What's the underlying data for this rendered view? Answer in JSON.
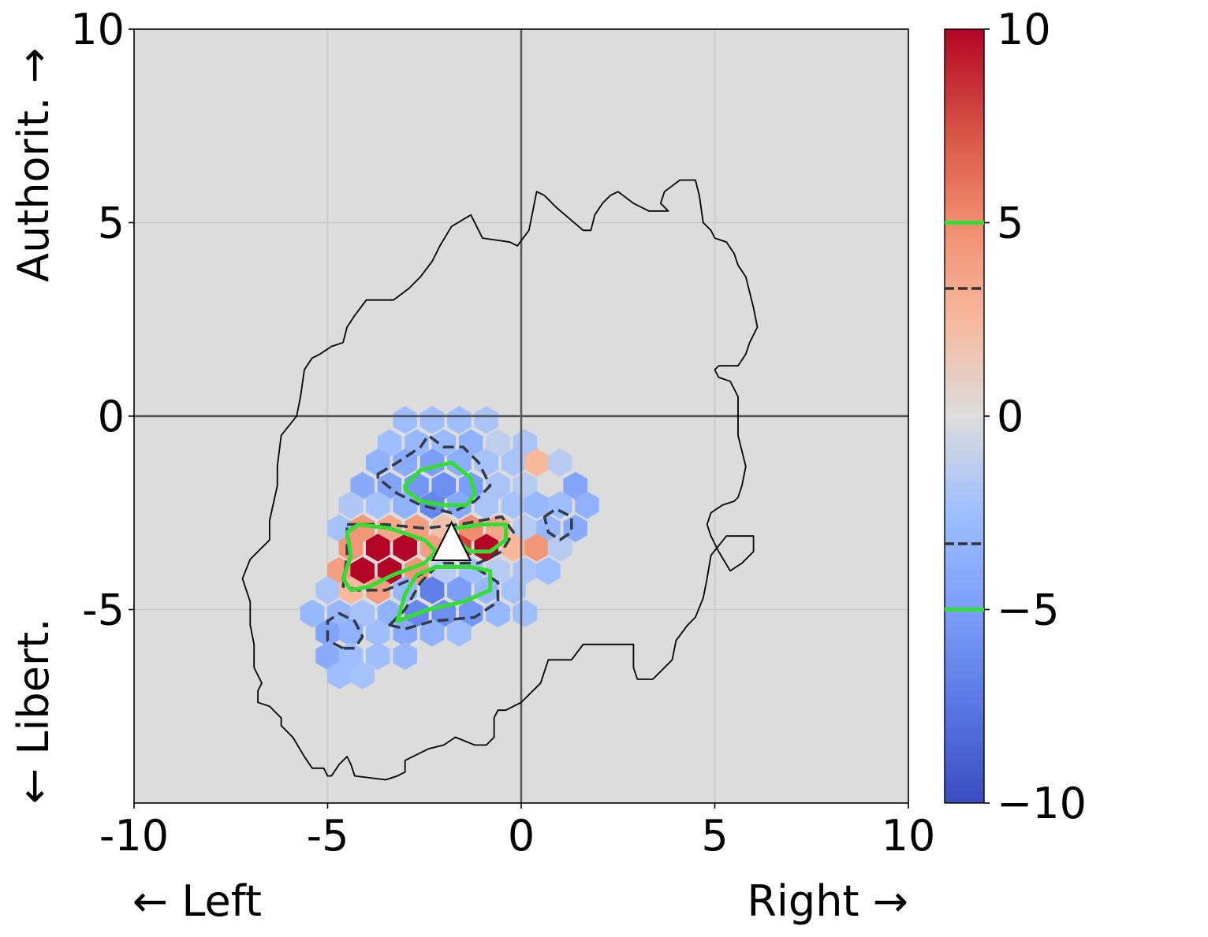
{
  "chart_data": {
    "type": "heatmap",
    "subtype": "hexbin",
    "xlim": [
      -10,
      10
    ],
    "ylim": [
      -10,
      10
    ],
    "x_ticks": [
      "-10",
      "-5",
      "0",
      "5",
      "10"
    ],
    "y_ticks": [
      "-5",
      "0",
      "5",
      "10"
    ],
    "y_axis_label_top": "Authorit. →",
    "y_axis_label_bottom": "← Libert.",
    "x_axis_label_left": "← Left",
    "x_axis_label_right": "Right →",
    "grid": true,
    "background_color": "#dcdcdc",
    "colormap": "coolwarm",
    "colorbar": {
      "range": [
        -10,
        10
      ],
      "ticks": [
        "10",
        "5",
        "0",
        "−5",
        "−10"
      ],
      "ticks_values": [
        10,
        5,
        0,
        -5,
        -10
      ],
      "contour_markers": [
        {
          "value": 5,
          "style": "solid",
          "color": "#33dd33"
        },
        {
          "value": 3.3,
          "style": "dashed",
          "color": "#333333"
        },
        {
          "value": -3.3,
          "style": "dashed",
          "color": "#333333"
        },
        {
          "value": -5,
          "style": "solid",
          "color": "#33dd33"
        }
      ]
    },
    "cells": [
      {
        "x": -3.0,
        "y": -0.1,
        "v": -2.5
      },
      {
        "x": -2.3,
        "y": -0.1,
        "v": -2.5
      },
      {
        "x": -1.6,
        "y": -0.1,
        "v": -2.5
      },
      {
        "x": -0.9,
        "y": -0.1,
        "v": -2.0
      },
      {
        "x": -3.4,
        "y": -0.7,
        "v": -2.5
      },
      {
        "x": -2.7,
        "y": -0.7,
        "v": -3.0
      },
      {
        "x": -2.0,
        "y": -0.7,
        "v": -2.8
      },
      {
        "x": -1.3,
        "y": -0.7,
        "v": -3.5
      },
      {
        "x": -0.6,
        "y": -0.7,
        "v": -1.2
      },
      {
        "x": 0.1,
        "y": -0.7,
        "v": -2.0
      },
      {
        "x": -3.7,
        "y": -1.2,
        "v": -3.5
      },
      {
        "x": -3.0,
        "y": -1.2,
        "v": -4.0
      },
      {
        "x": -2.3,
        "y": -1.2,
        "v": -5.0
      },
      {
        "x": -1.6,
        "y": -1.2,
        "v": -3.8
      },
      {
        "x": -0.9,
        "y": -1.2,
        "v": -2.2
      },
      {
        "x": -0.2,
        "y": -1.2,
        "v": -2.0
      },
      {
        "x": 0.4,
        "y": -1.2,
        "v": 2.5
      },
      {
        "x": 1.0,
        "y": -1.2,
        "v": -1.5
      },
      {
        "x": -4.1,
        "y": -1.8,
        "v": -4.0
      },
      {
        "x": -3.4,
        "y": -1.8,
        "v": -4.5
      },
      {
        "x": -2.7,
        "y": -1.8,
        "v": -5.5
      },
      {
        "x": -2.0,
        "y": -1.8,
        "v": -6.0
      },
      {
        "x": -1.3,
        "y": -1.8,
        "v": -5.0
      },
      {
        "x": -0.6,
        "y": -1.8,
        "v": -2.0
      },
      {
        "x": 0.1,
        "y": -1.8,
        "v": -1.5
      },
      {
        "x": 1.4,
        "y": -1.8,
        "v": -4.5
      },
      {
        "x": -4.4,
        "y": -2.3,
        "v": -1.8
      },
      {
        "x": -3.7,
        "y": -2.3,
        "v": -2.2
      },
      {
        "x": -3.0,
        "y": -2.3,
        "v": -3.5
      },
      {
        "x": -2.3,
        "y": -2.3,
        "v": -6.5
      },
      {
        "x": -1.6,
        "y": -2.3,
        "v": -4.2
      },
      {
        "x": -0.9,
        "y": -2.3,
        "v": -2.0
      },
      {
        "x": -0.2,
        "y": -2.3,
        "v": -2.2
      },
      {
        "x": 0.4,
        "y": -2.3,
        "v": -3.0
      },
      {
        "x": 1.0,
        "y": -2.3,
        "v": -2.5
      },
      {
        "x": 1.7,
        "y": -2.3,
        "v": -3.5
      },
      {
        "x": -4.7,
        "y": -2.9,
        "v": -2.2
      },
      {
        "x": -4.1,
        "y": -2.9,
        "v": 4.5
      },
      {
        "x": -3.4,
        "y": -2.9,
        "v": 3.5
      },
      {
        "x": -2.7,
        "y": -2.9,
        "v": 4.0
      },
      {
        "x": -2.0,
        "y": -2.9,
        "v": 2.0
      },
      {
        "x": -1.3,
        "y": -2.9,
        "v": 5.0
      },
      {
        "x": -0.6,
        "y": -2.9,
        "v": 3.5
      },
      {
        "x": 0.1,
        "y": -2.9,
        "v": -1.5
      },
      {
        "x": 0.7,
        "y": -2.9,
        "v": -3.0
      },
      {
        "x": 1.4,
        "y": -2.9,
        "v": -4.0
      },
      {
        "x": -4.4,
        "y": -3.4,
        "v": 4.5
      },
      {
        "x": -3.7,
        "y": -3.4,
        "v": 10
      },
      {
        "x": -3.0,
        "y": -3.4,
        "v": 10
      },
      {
        "x": -2.3,
        "y": -3.4,
        "v": 4.0
      },
      {
        "x": -1.6,
        "y": -3.4,
        "v": 8.0
      },
      {
        "x": -0.9,
        "y": -3.4,
        "v": 10
      },
      {
        "x": -0.2,
        "y": -3.4,
        "v": 2.5
      },
      {
        "x": 0.4,
        "y": -3.4,
        "v": 4.5
      },
      {
        "x": 1.0,
        "y": -3.4,
        "v": -1.5
      },
      {
        "x": -4.7,
        "y": -4.0,
        "v": 4.0
      },
      {
        "x": -4.1,
        "y": -4.0,
        "v": 10
      },
      {
        "x": -3.4,
        "y": -4.0,
        "v": 10
      },
      {
        "x": -2.7,
        "y": -4.0,
        "v": 4.5
      },
      {
        "x": -2.0,
        "y": -4.0,
        "v": -1.5
      },
      {
        "x": -1.3,
        "y": -4.0,
        "v": -2.5
      },
      {
        "x": -0.6,
        "y": -4.0,
        "v": -1.5
      },
      {
        "x": 0.1,
        "y": -4.0,
        "v": -2.0
      },
      {
        "x": 0.7,
        "y": -4.0,
        "v": -2.5
      },
      {
        "x": -5.0,
        "y": -4.5,
        "v": -2.0
      },
      {
        "x": -4.4,
        "y": -4.5,
        "v": 2.5
      },
      {
        "x": -3.7,
        "y": -4.5,
        "v": 4.0
      },
      {
        "x": -3.0,
        "y": -4.5,
        "v": -3.0
      },
      {
        "x": -2.3,
        "y": -4.5,
        "v": -7.0
      },
      {
        "x": -1.6,
        "y": -4.5,
        "v": -5.0
      },
      {
        "x": -0.9,
        "y": -4.5,
        "v": -3.0
      },
      {
        "x": -0.2,
        "y": -4.5,
        "v": -2.2
      },
      {
        "x": -5.4,
        "y": -5.1,
        "v": -3.0
      },
      {
        "x": -4.7,
        "y": -5.1,
        "v": -3.0
      },
      {
        "x": -4.1,
        "y": -5.1,
        "v": -2.2
      },
      {
        "x": -3.4,
        "y": -5.1,
        "v": -3.5
      },
      {
        "x": -2.7,
        "y": -5.1,
        "v": -6.5
      },
      {
        "x": -2.0,
        "y": -5.1,
        "v": -6.0
      },
      {
        "x": -1.3,
        "y": -5.1,
        "v": -5.5
      },
      {
        "x": -0.6,
        "y": -5.1,
        "v": -3.0
      },
      {
        "x": 0.1,
        "y": -5.1,
        "v": -2.5
      },
      {
        "x": -5.0,
        "y": -5.6,
        "v": -4.5
      },
      {
        "x": -4.4,
        "y": -5.6,
        "v": -3.5
      },
      {
        "x": -3.7,
        "y": -5.6,
        "v": -2.5
      },
      {
        "x": -3.0,
        "y": -5.6,
        "v": -4.0
      },
      {
        "x": -2.3,
        "y": -5.6,
        "v": -3.5
      },
      {
        "x": -1.6,
        "y": -5.6,
        "v": -2.5
      },
      {
        "x": -5.0,
        "y": -6.2,
        "v": -4.0
      },
      {
        "x": -4.4,
        "y": -6.2,
        "v": -2.5
      },
      {
        "x": -3.7,
        "y": -6.2,
        "v": -2.5
      },
      {
        "x": -3.0,
        "y": -6.2,
        "v": -3.0
      },
      {
        "x": -4.7,
        "y": -6.7,
        "v": -2.5
      },
      {
        "x": -4.1,
        "y": -6.7,
        "v": -2.2
      }
    ],
    "outline": [
      [
        -6.9,
        -6.5
      ],
      [
        -6.9,
        -5.9
      ],
      [
        -7.0,
        -5.4
      ],
      [
        -7.0,
        -4.8
      ],
      [
        -7.2,
        -4.2
      ],
      [
        -7.0,
        -3.7
      ],
      [
        -6.5,
        -3.2
      ],
      [
        -6.5,
        -2.7
      ],
      [
        -6.3,
        -1.8
      ],
      [
        -6.3,
        -1.3
      ],
      [
        -6.2,
        -0.5
      ],
      [
        -5.8,
        0.0
      ],
      [
        -5.7,
        0.5
      ],
      [
        -5.6,
        1.2
      ],
      [
        -5.4,
        1.5
      ],
      [
        -5.2,
        1.6
      ],
      [
        -4.9,
        1.8
      ],
      [
        -4.6,
        1.9
      ],
      [
        -4.5,
        2.3
      ],
      [
        -4.3,
        2.6
      ],
      [
        -4.0,
        3.0
      ],
      [
        -3.9,
        3.0
      ],
      [
        -3.3,
        3.0
      ],
      [
        -2.9,
        3.3
      ],
      [
        -2.6,
        3.6
      ],
      [
        -2.3,
        4.0
      ],
      [
        -2.1,
        4.4
      ],
      [
        -1.8,
        4.9
      ],
      [
        -1.3,
        5.2
      ],
      [
        -1.1,
        4.8
      ],
      [
        -1.0,
        4.6
      ],
      [
        -0.3,
        4.5
      ],
      [
        -0.1,
        4.4
      ],
      [
        0.2,
        4.8
      ],
      [
        0.4,
        5.8
      ],
      [
        0.6,
        5.7
      ],
      [
        0.9,
        5.4
      ],
      [
        1.6,
        4.8
      ],
      [
        1.8,
        4.8
      ],
      [
        1.9,
        5.2
      ],
      [
        2.1,
        5.5
      ],
      [
        2.3,
        5.7
      ],
      [
        2.5,
        5.8
      ],
      [
        2.9,
        5.5
      ],
      [
        3.3,
        5.3
      ],
      [
        3.8,
        5.3
      ],
      [
        3.6,
        5.5
      ],
      [
        3.7,
        5.8
      ],
      [
        4.1,
        6.1
      ],
      [
        4.5,
        6.1
      ],
      [
        4.6,
        5.7
      ],
      [
        4.7,
        5.0
      ],
      [
        4.9,
        4.8
      ],
      [
        5.0,
        4.6
      ],
      [
        5.3,
        4.5
      ],
      [
        5.5,
        4.2
      ],
      [
        5.6,
        3.9
      ],
      [
        5.8,
        3.6
      ],
      [
        5.9,
        3.2
      ],
      [
        6.0,
        2.8
      ],
      [
        6.1,
        2.3
      ],
      [
        5.9,
        1.9
      ],
      [
        5.8,
        1.6
      ],
      [
        5.6,
        1.3
      ],
      [
        5.1,
        1.3
      ],
      [
        5.0,
        1.2
      ],
      [
        5.1,
        1.0
      ],
      [
        5.4,
        0.9
      ],
      [
        5.6,
        0.5
      ],
      [
        5.6,
        -0.5
      ],
      [
        5.8,
        -1.3
      ],
      [
        5.7,
        -1.8
      ],
      [
        5.6,
        -2.1
      ],
      [
        5.5,
        -2.2
      ],
      [
        5.2,
        -2.3
      ],
      [
        4.9,
        -2.5
      ],
      [
        4.8,
        -2.8
      ],
      [
        4.9,
        -3.1
      ],
      [
        5.1,
        -3.5
      ],
      [
        5.4,
        -4.0
      ],
      [
        5.7,
        -3.8
      ],
      [
        6.0,
        -3.5
      ],
      [
        6.0,
        -3.1
      ],
      [
        5.3,
        -3.1
      ],
      [
        4.9,
        -3.6
      ],
      [
        4.8,
        -4.2
      ],
      [
        4.7,
        -4.7
      ],
      [
        4.5,
        -5.2
      ],
      [
        4.3,
        -5.4
      ],
      [
        4.0,
        -5.8
      ],
      [
        3.9,
        -6.3
      ],
      [
        3.7,
        -6.5
      ],
      [
        3.4,
        -6.8
      ],
      [
        3.1,
        -6.8
      ],
      [
        3.0,
        -6.8
      ],
      [
        2.9,
        -6.5
      ],
      [
        2.9,
        -5.9
      ],
      [
        1.6,
        -5.9
      ],
      [
        1.3,
        -6.3
      ],
      [
        0.7,
        -6.3
      ],
      [
        0.5,
        -6.9
      ],
      [
        0.0,
        -7.4
      ],
      [
        -0.4,
        -7.6
      ],
      [
        -0.6,
        -7.6
      ],
      [
        -0.7,
        -7.8
      ],
      [
        -0.7,
        -8.3
      ],
      [
        -0.9,
        -8.5
      ],
      [
        -1.2,
        -8.5
      ],
      [
        -1.7,
        -8.3
      ],
      [
        -2.0,
        -8.5
      ],
      [
        -2.4,
        -8.6
      ],
      [
        -2.8,
        -8.8
      ],
      [
        -3.0,
        -8.9
      ],
      [
        -3.0,
        -9.2
      ],
      [
        -3.2,
        -9.3
      ],
      [
        -3.5,
        -9.4
      ],
      [
        -4.3,
        -9.3
      ],
      [
        -4.4,
        -9.0
      ],
      [
        -4.5,
        -8.8
      ],
      [
        -4.7,
        -9.0
      ],
      [
        -4.9,
        -9.3
      ],
      [
        -5.0,
        -9.3
      ],
      [
        -5.1,
        -9.1
      ],
      [
        -5.4,
        -9.1
      ],
      [
        -5.6,
        -8.8
      ],
      [
        -5.9,
        -8.3
      ],
      [
        -6.2,
        -8.0
      ],
      [
        -6.2,
        -7.8
      ],
      [
        -6.5,
        -7.5
      ],
      [
        -6.8,
        -7.4
      ],
      [
        -6.8,
        -7.1
      ],
      [
        -6.7,
        -6.9
      ],
      [
        -6.9,
        -6.5
      ]
    ],
    "contours_solid_green": [
      [
        [
          -3.0,
          -1.8
        ],
        [
          -2.6,
          -1.4
        ],
        [
          -1.8,
          -1.2
        ],
        [
          -1.3,
          -1.6
        ],
        [
          -1.2,
          -2.0
        ],
        [
          -1.4,
          -2.3
        ],
        [
          -2.0,
          -2.3
        ],
        [
          -2.6,
          -2.2
        ],
        [
          -3.0,
          -1.9
        ]
      ],
      [
        [
          -4.5,
          -3.0
        ],
        [
          -4.2,
          -2.8
        ],
        [
          -3.4,
          -2.9
        ],
        [
          -2.5,
          -3.2
        ],
        [
          -2.2,
          -3.5
        ],
        [
          -2.5,
          -3.8
        ],
        [
          -3.3,
          -4.1
        ],
        [
          -3.9,
          -4.4
        ],
        [
          -4.4,
          -4.5
        ],
        [
          -4.6,
          -4.2
        ],
        [
          -4.4,
          -3.6
        ],
        [
          -4.5,
          -3.0
        ]
      ],
      [
        [
          -1.7,
          -2.9
        ],
        [
          -1.0,
          -2.8
        ],
        [
          -0.4,
          -2.8
        ],
        [
          -0.4,
          -3.2
        ],
        [
          -0.8,
          -3.5
        ],
        [
          -1.3,
          -3.5
        ],
        [
          -1.7,
          -3.2
        ],
        [
          -1.7,
          -2.9
        ]
      ],
      [
        [
          -3.2,
          -5.3
        ],
        [
          -3.0,
          -4.6
        ],
        [
          -2.7,
          -4.1
        ],
        [
          -2.2,
          -3.9
        ],
        [
          -1.3,
          -3.9
        ],
        [
          -0.8,
          -4.0
        ],
        [
          -0.8,
          -4.5
        ],
        [
          -1.5,
          -4.8
        ],
        [
          -2.4,
          -5.0
        ],
        [
          -3.2,
          -5.3
        ]
      ]
    ],
    "contours_dashed": [
      [
        [
          -3.7,
          -1.5
        ],
        [
          -3.2,
          -1.2
        ],
        [
          -2.6,
          -0.8
        ],
        [
          -2.4,
          -0.5
        ],
        [
          -2.0,
          -0.8
        ],
        [
          -1.5,
          -0.8
        ],
        [
          -1.1,
          -1.2
        ],
        [
          -0.8,
          -1.8
        ],
        [
          -1.2,
          -2.2
        ],
        [
          -1.8,
          -2.5
        ],
        [
          -2.6,
          -2.3
        ],
        [
          -3.2,
          -2.0
        ],
        [
          -3.7,
          -1.6
        ]
      ],
      [
        [
          -4.5,
          -2.8
        ],
        [
          -3.5,
          -2.8
        ],
        [
          -2.5,
          -2.9
        ],
        [
          -1.6,
          -2.8
        ],
        [
          -0.5,
          -2.6
        ],
        [
          -0.2,
          -3.0
        ],
        [
          -0.5,
          -3.5
        ],
        [
          -1.1,
          -3.8
        ],
        [
          -2.0,
          -3.8
        ],
        [
          -2.8,
          -4.2
        ],
        [
          -3.5,
          -4.5
        ],
        [
          -4.2,
          -4.5
        ],
        [
          -4.6,
          -4.4
        ],
        [
          -4.5,
          -3.6
        ],
        [
          -4.5,
          -2.8
        ]
      ],
      [
        [
          -3.4,
          -5.4
        ],
        [
          -3.0,
          -5.0
        ],
        [
          -2.6,
          -4.3
        ],
        [
          -2.2,
          -3.9
        ],
        [
          -1.2,
          -3.9
        ],
        [
          -0.6,
          -4.3
        ],
        [
          -0.6,
          -4.8
        ],
        [
          -1.2,
          -5.2
        ],
        [
          -2.3,
          -5.3
        ],
        [
          -3.0,
          -5.5
        ],
        [
          -3.4,
          -5.4
        ]
      ],
      [
        [
          -4.6,
          -6.0
        ],
        [
          -5.0,
          -5.8
        ],
        [
          -5.0,
          -5.3
        ],
        [
          -4.7,
          -5.1
        ],
        [
          -4.3,
          -5.3
        ],
        [
          -4.1,
          -5.7
        ],
        [
          -4.3,
          -6.0
        ],
        [
          -4.6,
          -6.0
        ]
      ],
      [
        [
          0.6,
          -2.6
        ],
        [
          0.9,
          -2.4
        ],
        [
          1.3,
          -2.6
        ],
        [
          1.3,
          -3.0
        ],
        [
          1.0,
          -3.2
        ],
        [
          0.7,
          -3.0
        ],
        [
          0.6,
          -2.6
        ]
      ]
    ],
    "marker": {
      "shape": "triangle",
      "x": -1.8,
      "y": -3.3,
      "color": "#ffffff"
    }
  }
}
